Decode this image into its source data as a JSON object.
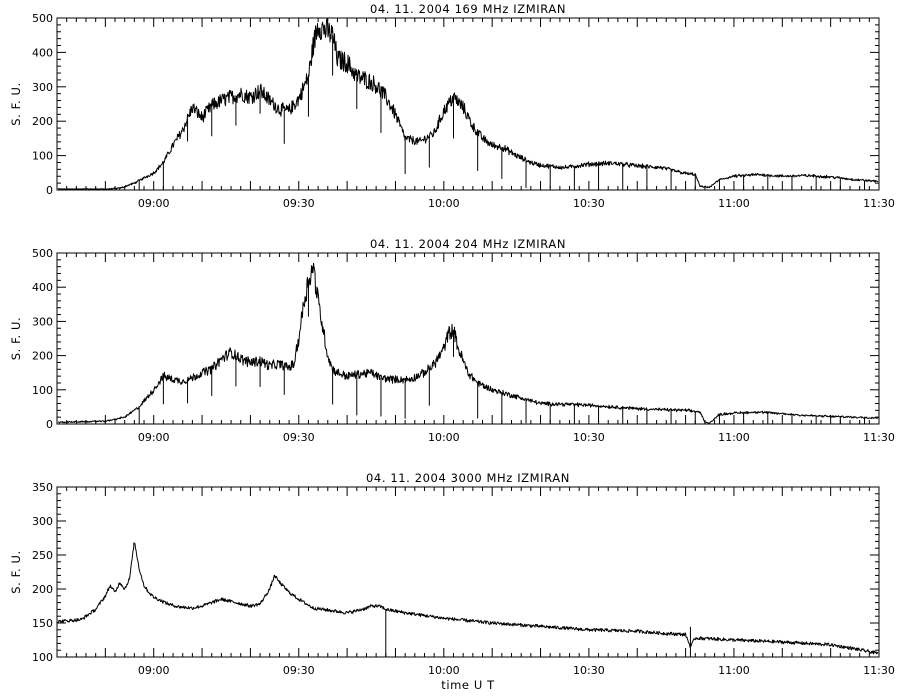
{
  "chart_data": [
    {
      "type": "line",
      "title": "04.  11.  2004    169 MHz    IZMIRAN",
      "xlabel": "",
      "ylabel": "S. F. U.",
      "xlim": [
        "08:40",
        "11:30"
      ],
      "ylim": [
        0,
        500
      ],
      "x_ticks": [
        "09:00",
        "09:30",
        "10:00",
        "10:30",
        "11:00",
        "11:30"
      ],
      "y_ticks": [
        0,
        100,
        200,
        300,
        400,
        500
      ],
      "series": [
        {
          "x": [
            "08:40",
            "08:50",
            "08:53",
            "08:56",
            "08:58",
            "09:00",
            "09:02",
            "09:04",
            "09:06",
            "09:08",
            "09:10",
            "09:12",
            "09:14",
            "09:16",
            "09:18",
            "09:20",
            "09:22",
            "09:24",
            "09:26",
            "09:28",
            "09:30",
            "09:32",
            "09:33",
            "09:34",
            "09:35",
            "09:37",
            "09:38",
            "09:40",
            "09:42",
            "09:44",
            "09:46",
            "09:48",
            "09:50",
            "09:52",
            "09:55",
            "09:58",
            "10:00",
            "10:02",
            "10:04",
            "10:06",
            "10:08",
            "10:10",
            "10:12",
            "10:15",
            "10:18",
            "10:20",
            "10:25",
            "10:30",
            "10:35",
            "10:40",
            "10:45",
            "10:50",
            "10:52",
            "10:53",
            "10:55",
            "10:57",
            "11:00",
            "11:05",
            "11:10",
            "11:15",
            "11:20",
            "11:25",
            "11:30"
          ],
          "values": [
            2,
            2,
            5,
            20,
            35,
            50,
            80,
            130,
            175,
            240,
            210,
            245,
            260,
            270,
            280,
            270,
            290,
            260,
            235,
            230,
            265,
            330,
            420,
            480,
            470,
            450,
            380,
            370,
            330,
            320,
            305,
            270,
            220,
            150,
            140,
            165,
            230,
            270,
            240,
            185,
            150,
            130,
            125,
            100,
            80,
            72,
            65,
            75,
            78,
            70,
            65,
            48,
            45,
            10,
            8,
            30,
            40,
            45,
            40,
            42,
            38,
            30,
            25
          ]
        }
      ]
    },
    {
      "type": "line",
      "title": "04.  11.  2004    204 MHz    IZMIRAN",
      "xlabel": "",
      "ylabel": "S. F. U.",
      "xlim": [
        "08:40",
        "11:30"
      ],
      "ylim": [
        0,
        500
      ],
      "x_ticks": [
        "09:00",
        "09:30",
        "10:00",
        "10:30",
        "11:00",
        "11:30"
      ],
      "y_ticks": [
        0,
        100,
        200,
        300,
        400,
        500
      ],
      "series": [
        {
          "x": [
            "08:40",
            "08:50",
            "08:54",
            "08:57",
            "09:00",
            "09:02",
            "09:04",
            "09:06",
            "09:08",
            "09:10",
            "09:12",
            "09:14",
            "09:16",
            "09:18",
            "09:20",
            "09:22",
            "09:24",
            "09:26",
            "09:28",
            "09:29",
            "09:30",
            "09:31",
            "09:32",
            "09:33",
            "09:34",
            "09:35",
            "09:36",
            "09:37",
            "09:38",
            "09:40",
            "09:42",
            "09:45",
            "09:47",
            "09:50",
            "09:53",
            "09:56",
            "09:58",
            "10:00",
            "10:01",
            "10:02",
            "10:03",
            "10:05",
            "10:07",
            "10:10",
            "10:15",
            "10:20",
            "10:25",
            "10:30",
            "10:35",
            "10:40",
            "10:45",
            "10:50",
            "10:53",
            "10:54",
            "10:55",
            "10:57",
            "11:00",
            "11:05",
            "11:10",
            "11:15",
            "11:20",
            "11:25",
            "11:30"
          ],
          "values": [
            5,
            8,
            20,
            50,
            100,
            140,
            130,
            125,
            135,
            150,
            160,
            190,
            210,
            190,
            180,
            185,
            170,
            175,
            165,
            175,
            250,
            350,
            420,
            460,
            360,
            280,
            200,
            160,
            150,
            140,
            145,
            150,
            135,
            130,
            130,
            150,
            175,
            220,
            265,
            275,
            220,
            150,
            120,
            100,
            80,
            60,
            58,
            55,
            50,
            45,
            42,
            40,
            35,
            5,
            3,
            28,
            32,
            35,
            30,
            25,
            22,
            20,
            18
          ]
        }
      ]
    },
    {
      "type": "line",
      "title": "04.  11.  2004    3000 MHz    IZMIRAN",
      "xlabel": "time  U T",
      "ylabel": "S. F. U.",
      "xlim": [
        "08:40",
        "11:30"
      ],
      "ylim": [
        100,
        350
      ],
      "x_ticks": [
        "09:00",
        "09:30",
        "10:00",
        "10:30",
        "11:00",
        "11:30"
      ],
      "y_ticks": [
        100,
        150,
        200,
        250,
        300,
        350
      ],
      "series": [
        {
          "x": [
            "08:40",
            "08:45",
            "08:48",
            "08:50",
            "08:51",
            "08:52",
            "08:53",
            "08:54",
            "08:55",
            "08:56",
            "08:57",
            "08:58",
            "08:59",
            "09:00",
            "09:03",
            "09:05",
            "09:08",
            "09:10",
            "09:12",
            "09:14",
            "09:17",
            "09:20",
            "09:22",
            "09:24",
            "09:25",
            "09:26",
            "09:28",
            "09:30",
            "09:33",
            "09:37",
            "09:40",
            "09:42",
            "09:44",
            "09:45",
            "09:46",
            "09:47",
            "09:48",
            "09:52",
            "10:00",
            "10:10",
            "10:20",
            "10:30",
            "10:40",
            "10:45",
            "10:50",
            "10:51",
            "10:52",
            "11:00",
            "11:10",
            "11:20",
            "11:25",
            "11:30"
          ],
          "values": [
            152,
            155,
            170,
            190,
            205,
            195,
            210,
            200,
            215,
            270,
            230,
            205,
            195,
            188,
            178,
            174,
            172,
            175,
            180,
            185,
            180,
            175,
            178,
            200,
            220,
            210,
            195,
            185,
            172,
            168,
            165,
            168,
            172,
            175,
            175,
            174,
            170,
            165,
            157,
            150,
            145,
            140,
            138,
            135,
            133,
            115,
            128,
            125,
            122,
            118,
            112,
            105
          ]
        }
      ]
    }
  ]
}
